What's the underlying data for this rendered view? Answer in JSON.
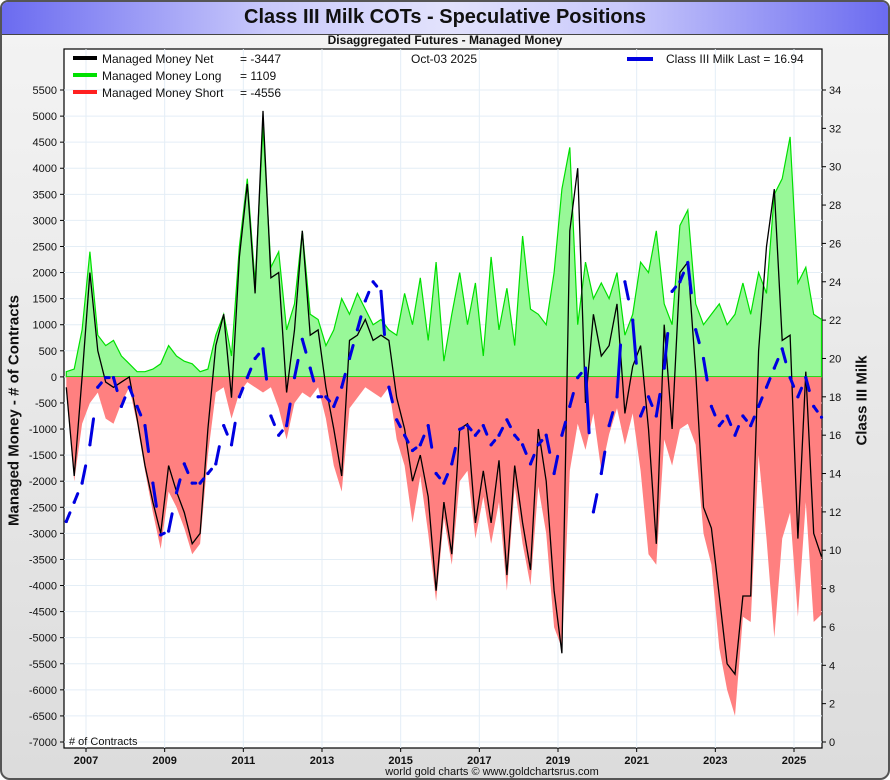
{
  "header": {
    "title": "Class III Milk COTs - Speculative Positions",
    "subtitle": "Disaggregated Futures - Managed Money"
  },
  "footer": {
    "credit": "world gold charts © www.goldchartsrus.com"
  },
  "colors": {
    "net": "#000000",
    "long": "#00e000",
    "long_fill": "#98f898",
    "short": "#ff2020",
    "short_fill": "#ff8080",
    "milk": "#0000e0",
    "grid": "#e4eef6"
  },
  "chart_data": {
    "type": "area",
    "title": "Class III Milk COTs - Speculative Positions",
    "subtitle": "Disaggregated Futures - Managed Money",
    "date_label": "Oct-03  2025",
    "ylabel": "Managed Money - # of Contracts",
    "ylabel2": "Class III Milk",
    "corner_label": "# of Contracts",
    "grid": true,
    "ylim": [
      -7000,
      5500
    ],
    "y2lim": [
      0,
      34
    ],
    "xlim": [
      2006.45,
      2025.75
    ],
    "yticks": [
      5500,
      5000,
      4500,
      4000,
      3500,
      3000,
      2500,
      2000,
      1500,
      1000,
      500,
      0,
      -500,
      -1000,
      -1500,
      -2000,
      -2500,
      -3000,
      -3500,
      -4000,
      -4500,
      -5000,
      -5500,
      -6000,
      -6500,
      -7000
    ],
    "y2ticks": [
      34,
      32,
      30,
      28,
      26,
      24,
      22,
      20,
      18,
      16,
      14,
      12,
      10,
      8,
      6,
      4,
      2,
      0
    ],
    "xticks": [
      2007,
      2009,
      2011,
      2013,
      2015,
      2017,
      2019,
      2021,
      2023,
      2025
    ],
    "legend": [
      {
        "name": "Managed Money Net",
        "value": "= -3447"
      },
      {
        "name": "Managed Money Long",
        "value": "= 1109"
      },
      {
        "name": "Managed Money Short",
        "value": "= -4556"
      }
    ],
    "legend_right": {
      "name": "Class III Milk Last = 16.94"
    },
    "legend_placement": "top",
    "x": [
      2006.5,
      2006.7,
      2006.9,
      2007.1,
      2007.3,
      2007.5,
      2007.7,
      2007.9,
      2008.1,
      2008.3,
      2008.5,
      2008.7,
      2008.9,
      2009.1,
      2009.3,
      2009.5,
      2009.7,
      2009.9,
      2010.1,
      2010.3,
      2010.5,
      2010.7,
      2010.9,
      2011.1,
      2011.3,
      2011.5,
      2011.7,
      2011.9,
      2012.1,
      2012.3,
      2012.5,
      2012.7,
      2012.9,
      2013.1,
      2013.3,
      2013.5,
      2013.7,
      2013.9,
      2014.1,
      2014.3,
      2014.5,
      2014.7,
      2014.9,
      2015.1,
      2015.3,
      2015.5,
      2015.7,
      2015.9,
      2016.1,
      2016.3,
      2016.5,
      2016.7,
      2016.9,
      2017.1,
      2017.3,
      2017.5,
      2017.7,
      2017.9,
      2018.1,
      2018.3,
      2018.5,
      2018.7,
      2018.9,
      2019.1,
      2019.3,
      2019.5,
      2019.7,
      2019.9,
      2020.1,
      2020.3,
      2020.5,
      2020.7,
      2020.9,
      2021.1,
      2021.3,
      2021.5,
      2021.7,
      2021.9,
      2022.1,
      2022.3,
      2022.5,
      2022.7,
      2022.9,
      2023.1,
      2023.3,
      2023.5,
      2023.7,
      2023.9,
      2024.1,
      2024.3,
      2024.5,
      2024.7,
      2024.9,
      2025.1,
      2025.3,
      2025.5,
      2025.7
    ],
    "series": [
      {
        "name": "Managed Money Long",
        "values": [
          100,
          150,
          900,
          2400,
          800,
          600,
          700,
          400,
          250,
          100,
          100,
          150,
          250,
          600,
          400,
          300,
          250,
          100,
          150,
          800,
          1200,
          400,
          2500,
          3800,
          1800,
          4800,
          2100,
          2400,
          900,
          1400,
          2800,
          1200,
          1100,
          600,
          900,
          1500,
          1200,
          1600,
          1300,
          1000,
          1100,
          900,
          800,
          1600,
          1000,
          1900,
          700,
          2200,
          300,
          1200,
          2000,
          1000,
          1800,
          400,
          2300,
          900,
          1700,
          600,
          2700,
          1300,
          1200,
          1000,
          2000,
          3600,
          4400,
          1000,
          2200,
          1500,
          1800,
          1500,
          2000,
          800,
          1200,
          2200,
          2000,
          2800,
          1400,
          1000,
          2900,
          3200,
          1400,
          1000,
          1200,
          1400,
          1000,
          1200,
          1800,
          1200,
          2000,
          1600,
          3500,
          3800,
          4600,
          1800,
          2100,
          1200,
          1100
        ]
      },
      {
        "name": "Managed Money Short",
        "values": [
          -300,
          -2000,
          -900,
          -500,
          -300,
          -800,
          -900,
          -500,
          -200,
          -900,
          -1800,
          -2600,
          -3300,
          -2200,
          -2500,
          -2900,
          -3400,
          -3200,
          -1500,
          -300,
          -200,
          -800,
          -300,
          -100,
          -200,
          -300,
          -200,
          -600,
          -1200,
          -500,
          -300,
          -400,
          -200,
          -800,
          -1700,
          -2200,
          -600,
          -400,
          -200,
          -300,
          -400,
          -200,
          -1200,
          -1700,
          -2800,
          -1900,
          -3000,
          -4300,
          -2700,
          -3600,
          -2000,
          -1800,
          -3100,
          -2300,
          -3200,
          -2400,
          -4100,
          -2100,
          -3200,
          -4000,
          -2100,
          -3000,
          -4800,
          -5200,
          -1800,
          -900,
          -1400,
          -700,
          -1800,
          -1100,
          -600,
          -1300,
          -700,
          -1800,
          -3400,
          -3600,
          -1200,
          -1700,
          -1000,
          -900,
          -1300,
          -3000,
          -3600,
          -5200,
          -6000,
          -6500,
          -4600,
          -4700,
          -1500,
          -3100,
          -5000,
          -3100,
          -2600,
          -4600,
          -2400,
          -4700,
          -4556
        ]
      },
      {
        "name": "Managed Money Net",
        "values": [
          -200,
          -1900,
          0,
          2000,
          500,
          -100,
          -200,
          -100,
          0,
          -800,
          -1700,
          -2400,
          -3000,
          -1700,
          -2200,
          -2600,
          -3200,
          -3000,
          -1000,
          600,
          1200,
          -400,
          2300,
          3700,
          1600,
          5100,
          1900,
          2000,
          -300,
          900,
          2800,
          800,
          900,
          -200,
          -1000,
          -1900,
          700,
          800,
          1100,
          700,
          800,
          700,
          -400,
          -1000,
          -2000,
          -1500,
          -2300,
          -4100,
          -2400,
          -3400,
          -1000,
          -900,
          -2800,
          -1800,
          -2800,
          -1600,
          -3800,
          -1700,
          -2800,
          -3700,
          -1000,
          -2000,
          -4100,
          -5300,
          2800,
          4000,
          -500,
          1200,
          400,
          600,
          1400,
          -700,
          200,
          600,
          -1000,
          -3200,
          1000,
          -1000,
          2000,
          2200,
          100,
          -2500,
          -2900,
          -4200,
          -5500,
          -5700,
          -4200,
          -4200,
          500,
          2500,
          3600,
          700,
          800,
          -3100,
          100,
          -3000,
          -3447
        ]
      },
      {
        "name": "Class III Milk",
        "axis": "right",
        "values": [
          11.5,
          12.5,
          13.5,
          15.5,
          18.5,
          19,
          19,
          17.5,
          18.5,
          17.5,
          16.5,
          13.5,
          10.8,
          11,
          13,
          14.5,
          13.5,
          13.5,
          14,
          14.5,
          16.5,
          15.5,
          18,
          19,
          20,
          20.5,
          17,
          16,
          16.5,
          19,
          21,
          19.5,
          18,
          18,
          17.5,
          18.5,
          20,
          21.5,
          23,
          24,
          23.5,
          18.5,
          16.8,
          16,
          15.2,
          15.5,
          16.5,
          14,
          13.5,
          14.5,
          16.3,
          16.5,
          16,
          16.5,
          15.5,
          16,
          16.8,
          16,
          15.5,
          14.5,
          15.5,
          16,
          14,
          16,
          17.5,
          19,
          19.5,
          12,
          14,
          16.5,
          18,
          24,
          22,
          17,
          18,
          17,
          19.5,
          23.5,
          24,
          25,
          21.5,
          20,
          17.5,
          16.5,
          17,
          16,
          17,
          16.5,
          17.5,
          18.5,
          19.5,
          20.5,
          19,
          18,
          19,
          17.5,
          16.94
        ]
      }
    ]
  }
}
